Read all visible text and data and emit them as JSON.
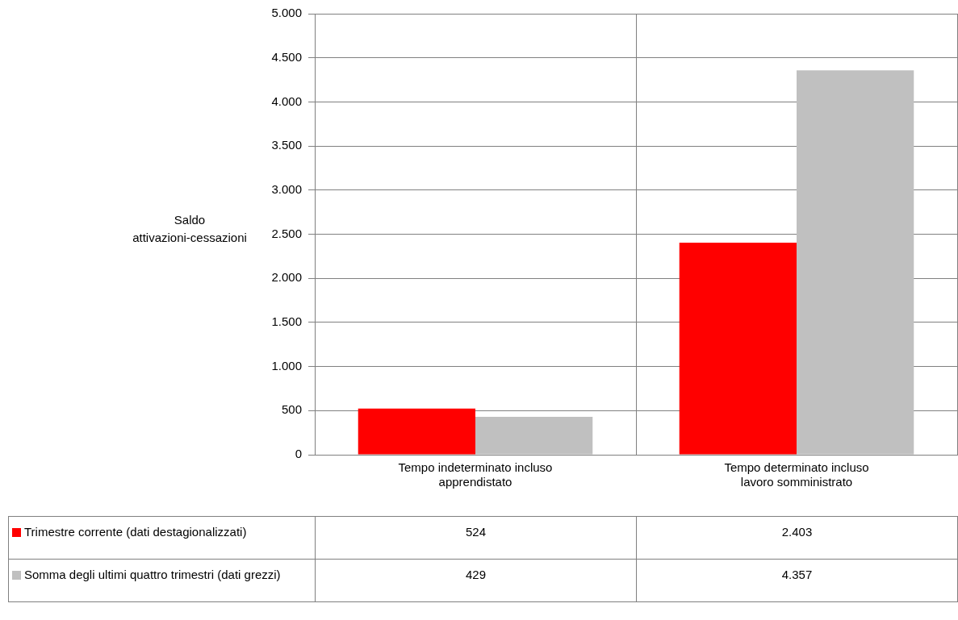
{
  "chart_data": {
    "type": "bar",
    "ylabel": "Saldo attivazioni-cessazioni",
    "categories": [
      "Tempo indeterminato incluso apprendistato",
      "Tempo determinato incluso lavoro somministrato"
    ],
    "series": [
      {
        "name": "Trimestre corrente (dati destagionalizzati)",
        "color": "#ff0000",
        "values": [
          524,
          2403
        ],
        "value_labels": [
          "524",
          "2.403"
        ]
      },
      {
        "name": "Somma degli ultimi quattro trimestri (dati grezzi)",
        "color": "#c0c0c0",
        "values": [
          429,
          4357
        ],
        "value_labels": [
          "429",
          "4.357"
        ]
      }
    ],
    "ylim": [
      0,
      5000
    ],
    "yticks": [
      0,
      {
        "value": 500,
        "label": "500"
      },
      {
        "value": 1000,
        "label": "1.000"
      },
      {
        "value": 1500,
        "label": "1.500"
      },
      {
        "value": 2000,
        "label": "2.000"
      },
      {
        "value": 2500,
        "label": "2.500"
      },
      {
        "value": 3000,
        "label": "3.000"
      },
      {
        "value": 3500,
        "label": "3.500"
      },
      {
        "value": 4000,
        "label": "4.000"
      },
      {
        "value": 4500,
        "label": "4.500"
      },
      {
        "value": 5000,
        "label": "5.000"
      }
    ],
    "grid": true,
    "legend": "bottom"
  }
}
